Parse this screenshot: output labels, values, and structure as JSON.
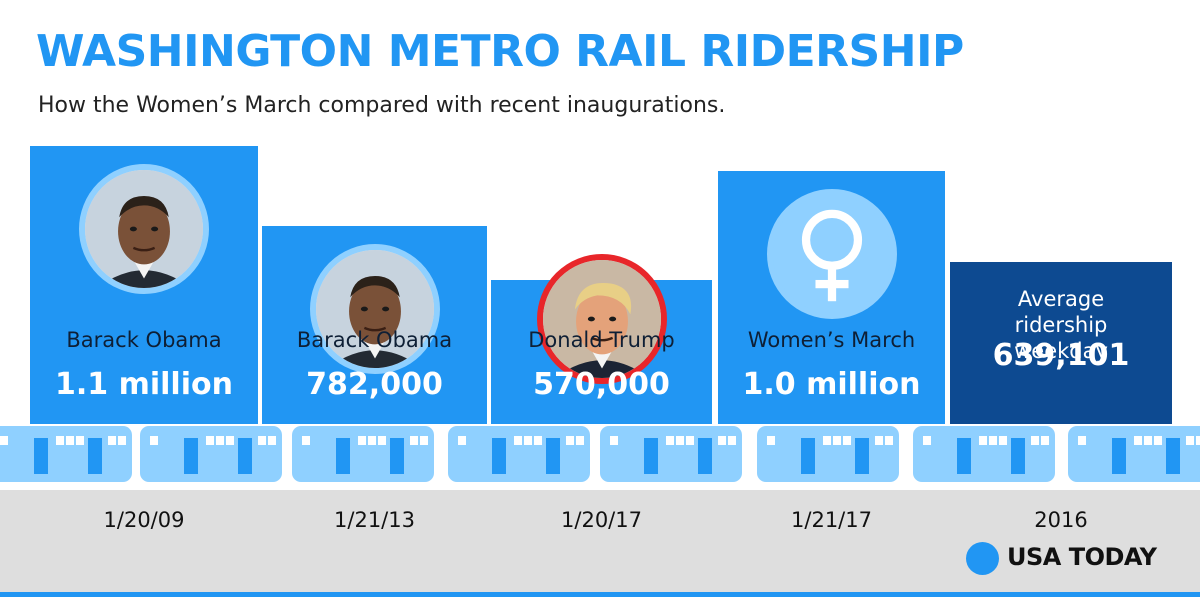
{
  "title": "WASHINGTON METRO RAIL RIDERSHIP",
  "subtitle": "How the Women’s March compared with recent inaugurations.",
  "brand": "USA TODAY",
  "colors": {
    "bar": "#2196f3",
    "bar_highlight": "#0d4a91",
    "ring": "#8fd0ff",
    "trump_ring": "#e8262a",
    "train": "#8fd0ff",
    "ground": "#dedede"
  },
  "chart_data": {
    "type": "bar",
    "title": "WASHINGTON METRO RAIL RIDERSHIP",
    "subtitle": "How the Women’s March compared with recent inaugurations.",
    "xlabel": "",
    "ylabel": "",
    "ylim": [
      0,
      1100000
    ],
    "grid": false,
    "categories": [
      "1/20/09",
      "1/21/13",
      "1/20/17",
      "1/21/17",
      "2016"
    ],
    "values": [
      1100000,
      782000,
      570000,
      1000000,
      639101
    ],
    "bars": [
      {
        "label": "Barack Obama",
        "value_label": "1.1 million",
        "date": "1/20/09",
        "icon": "obama-portrait-icon",
        "value": 1100000
      },
      {
        "label": "Barack Obama",
        "value_label": "782,000",
        "date": "1/21/13",
        "icon": "obama-portrait-icon",
        "value": 782000
      },
      {
        "label": "Donald Trump",
        "value_label": "570,000",
        "date": "1/20/17",
        "icon": "trump-portrait-icon",
        "value": 570000
      },
      {
        "label": "Women’s March",
        "value_label": "1.0 million",
        "date": "1/21/17",
        "icon": "venus-symbol-icon",
        "value": 1000000
      },
      {
        "label": "Average ridership weekday",
        "value_label": "639,101",
        "date": "2016",
        "icon": "",
        "value": 639101
      }
    ]
  }
}
